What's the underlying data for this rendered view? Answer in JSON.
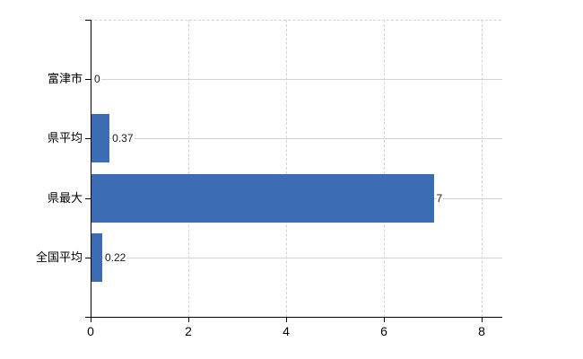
{
  "chart_data": {
    "type": "bar",
    "orientation": "horizontal",
    "title": "",
    "categories": [
      "富津市",
      "県平均",
      "県最大",
      "全国平均"
    ],
    "values": [
      0,
      0.37,
      7,
      0.22
    ],
    "value_labels": [
      "0",
      "0.37",
      "7",
      "0.22"
    ],
    "xticks": [
      "0",
      "2",
      "4",
      "6",
      "8"
    ],
    "xtick_values": [
      0,
      2,
      4,
      6,
      8
    ],
    "xlim": [
      0,
      8.4
    ],
    "grid": true,
    "legend": false,
    "colors": {
      "bar": "#3c6cb3",
      "gridline": "#cdd8cd",
      "axis": "#000000",
      "text": "#000000",
      "background": "#ffffff"
    }
  }
}
